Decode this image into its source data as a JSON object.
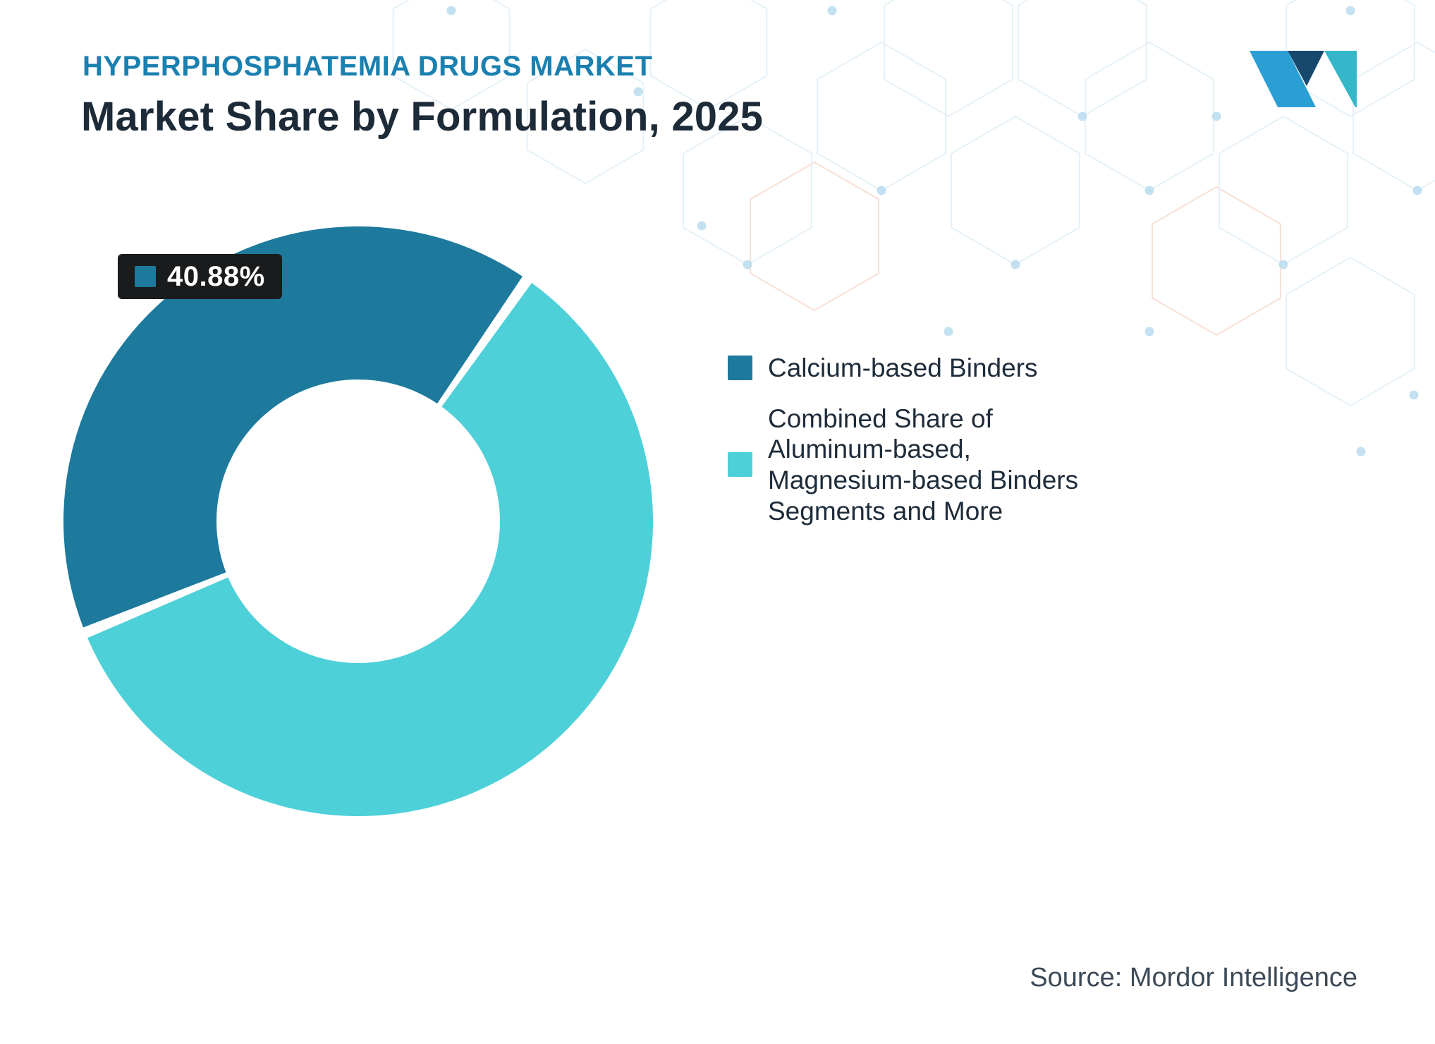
{
  "header": {
    "eyebrow": "HYPERPHOSPHATEMIA DRUGS MARKET",
    "title": "Market Share by Formulation, 2025"
  },
  "chart_data": {
    "type": "pie",
    "variant": "donut",
    "title": "Market Share by Formulation, 2025",
    "segments": [
      {
        "label": "Calcium-based Binders",
        "value": 40.88,
        "color": "#1d7a9c"
      },
      {
        "label": "Combined Share of Aluminum-based, Magnesium-based Binders Segments and More",
        "value": 59.12,
        "color": "#4dd0d8"
      }
    ],
    "start_angle_deg": 247.8,
    "gap_deg": 2.2,
    "inner_radius_ratio": 0.48,
    "legend_position": "right",
    "data_label": {
      "segment": "Calcium-based Binders",
      "text": "40.88%"
    }
  },
  "callout": {
    "value": "40.88%"
  },
  "legend": {
    "items": [
      {
        "label": "Calcium-based Binders",
        "color": "#1d7a9c"
      },
      {
        "label": "Combined Share of Aluminum-based, Magnesium-based Binders Segments and More",
        "color": "#4dd0d8"
      }
    ]
  },
  "source": {
    "text": "Source: Mordor Intelligence"
  },
  "logo": {
    "name": "Mordor Intelligence",
    "colors": {
      "left": "#2b9fd4",
      "middle": "#17496e",
      "right": "#35b7c9"
    }
  },
  "colors": {
    "eyebrow": "#1a80b0",
    "title": "#1d2b38",
    "pattern_line": "#e2f0f7",
    "pattern_line_warm": "#f6dccf",
    "pattern_dot": "#b9dcee"
  }
}
